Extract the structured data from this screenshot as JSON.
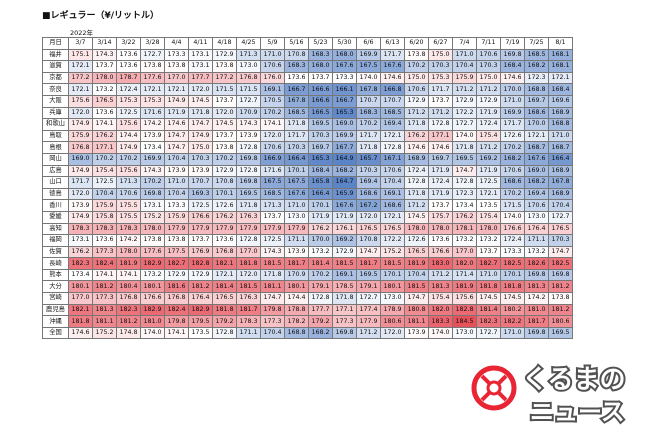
{
  "title": "■レギュラー（¥/リットル）",
  "year_label": "2022年",
  "header_label": "月日",
  "dates": [
    "3/7",
    "3/14",
    "3/22",
    "3/28",
    "4/4",
    "4/11",
    "4/18",
    "4/25",
    "5/9",
    "5/16",
    "5/23",
    "5/30",
    "6/6",
    "6/13",
    "6/20",
    "6/27",
    "7/4",
    "7/11",
    "7/19",
    "7/25",
    "8/1"
  ],
  "rows": [
    {
      "pref": "福井",
      "v": [
        "175.1",
        "174.3",
        "173.6",
        "172.7",
        "173.3",
        "173.1",
        "172.9",
        "171.3",
        "171.0",
        "170.8",
        "168.3",
        "168.0",
        "169.9",
        "171.7",
        "173.8",
        "175.0",
        "171.0",
        "170.6",
        "169.8",
        "168.5",
        "168.1"
      ]
    },
    {
      "pref": "滋賀",
      "v": [
        "172.1",
        "173.7",
        "173.6",
        "173.8",
        "173.8",
        "173.1",
        "173.8",
        "173.0",
        "170.6",
        "168.3",
        "168.0",
        "167.6",
        "167.5",
        "167.6",
        "170.2",
        "170.3",
        "170.4",
        "170.3",
        "168.4",
        "168.2",
        "168.1"
      ]
    },
    {
      "pref": "京都",
      "v": [
        "177.2",
        "178.0",
        "178.7",
        "177.6",
        "177.0",
        "177.7",
        "177.2",
        "176.8",
        "176.0",
        "173.6",
        "173.7",
        "173.3",
        "174.0",
        "174.6",
        "175.0",
        "175.3",
        "175.9",
        "175.0",
        "174.6",
        "172.3",
        "172.1"
      ]
    },
    {
      "pref": "奈良",
      "v": [
        "172.1",
        "173.2",
        "172.4",
        "172.1",
        "172.1",
        "172.0",
        "171.5",
        "171.5",
        "169.1",
        "166.7",
        "166.6",
        "166.1",
        "167.8",
        "166.8",
        "170.6",
        "171.7",
        "171.2",
        "171.2",
        "170.0",
        "168.8",
        "168.4"
      ]
    },
    {
      "pref": "大阪",
      "v": [
        "175.6",
        "176.5",
        "175.3",
        "175.3",
        "174.9",
        "174.5",
        "173.7",
        "172.7",
        "170.5",
        "167.8",
        "166.6",
        "166.7",
        "170.7",
        "170.7",
        "172.9",
        "173.7",
        "172.9",
        "172.9",
        "171.0",
        "169.7",
        "169.6"
      ]
    },
    {
      "pref": "兵庫",
      "v": [
        "172.0",
        "173.6",
        "172.5",
        "171.6",
        "171.9",
        "171.8",
        "172.0",
        "170.9",
        "170.2",
        "168.5",
        "166.5",
        "165.3",
        "168.3",
        "168.5",
        "171.2",
        "171.2",
        "172.2",
        "171.9",
        "169.9",
        "168.6",
        "168.9"
      ]
    },
    {
      "pref": "和歌山",
      "v": [
        "174.9",
        "174.1",
        "175.6",
        "174.2",
        "174.6",
        "174.7",
        "174.5",
        "174.3",
        "174.1",
        "171.8",
        "169.5",
        "169.0",
        "170.2",
        "169.4",
        "171.8",
        "172.8",
        "172.7",
        "172.4",
        "171.7",
        "170.0",
        "168.8"
      ]
    },
    {
      "pref": "鳥取",
      "v": [
        "175.9",
        "176.2",
        "174.4",
        "173.9",
        "174.7",
        "174.9",
        "173.7",
        "173.9",
        "172.0",
        "171.7",
        "170.3",
        "169.9",
        "171.7",
        "172.1",
        "176.2",
        "177.1",
        "174.0",
        "175.4",
        "172.6",
        "172.1",
        "171.0"
      ]
    },
    {
      "pref": "島根",
      "v": [
        "176.8",
        "177.1",
        "174.9",
        "173.4",
        "174.7",
        "175.0",
        "173.8",
        "172.8",
        "170.6",
        "170.3",
        "169.7",
        "167.7",
        "171.8",
        "172.8",
        "174.6",
        "174.6",
        "171.8",
        "171.2",
        "170.2",
        "168.7",
        "168.7"
      ]
    },
    {
      "pref": "岡山",
      "v": [
        "169.0",
        "170.2",
        "170.2",
        "169.9",
        "170.4",
        "170.3",
        "170.2",
        "169.8",
        "166.9",
        "166.4",
        "165.3",
        "164.9",
        "165.7",
        "167.1",
        "168.9",
        "169.7",
        "169.5",
        "169.2",
        "168.2",
        "167.6",
        "166.4"
      ]
    },
    {
      "pref": "広島",
      "v": [
        "174.9",
        "175.4",
        "175.6",
        "174.3",
        "173.9",
        "173.9",
        "172.9",
        "172.8",
        "171.6",
        "170.1",
        "168.4",
        "168.2",
        "170.3",
        "170.6",
        "172.4",
        "171.9",
        "174.7",
        "171.9",
        "170.6",
        "169.0",
        "168.9"
      ]
    },
    {
      "pref": "山口",
      "v": [
        "171.7",
        "172.5",
        "171.3",
        "170.2",
        "171.0",
        "170.7",
        "170.8",
        "169.8",
        "167.5",
        "167.5",
        "165.8",
        "164.7",
        "169.4",
        "170.4",
        "172.8",
        "172.4",
        "172.8",
        "172.5",
        "168.6",
        "168.2",
        "167.8"
      ]
    },
    {
      "pref": "徳島",
      "v": [
        "172.0",
        "170.4",
        "170.6",
        "169.8",
        "170.4",
        "169.3",
        "170.1",
        "169.5",
        "168.5",
        "167.6",
        "166.4",
        "165.9",
        "168.6",
        "169.1",
        "171.8",
        "171.9",
        "172.3",
        "172.1",
        "170.2",
        "169.4",
        "168.9"
      ]
    },
    {
      "pref": "香川",
      "v": [
        "173.9",
        "175.9",
        "175.5",
        "173.1",
        "173.3",
        "172.5",
        "172.6",
        "171.8",
        "171.3",
        "171.0",
        "170.1",
        "167.6",
        "167.2",
        "168.6",
        "171.2",
        "173.7",
        "173.4",
        "173.5",
        "171.5",
        "170.6",
        "170.4"
      ]
    },
    {
      "pref": "愛媛",
      "v": [
        "174.9",
        "175.8",
        "175.5",
        "175.2",
        "175.9",
        "176.6",
        "176.2",
        "176.3",
        "173.7",
        "173.0",
        "171.9",
        "171.9",
        "172.0",
        "172.1",
        "174.5",
        "175.7",
        "176.2",
        "175.4",
        "174.0",
        "173.0",
        "172.7"
      ]
    },
    {
      "pref": "高知",
      "v": [
        "178.3",
        "178.3",
        "178.3",
        "178.0",
        "177.9",
        "177.9",
        "177.9",
        "177.9",
        "177.9",
        "177.9",
        "176.2",
        "176.1",
        "176.5",
        "176.5",
        "178.0",
        "178.0",
        "178.1",
        "178.0",
        "176.6",
        "176.4",
        "176.5"
      ]
    },
    {
      "pref": "福岡",
      "v": [
        "173.1",
        "173.6",
        "174.2",
        "173.8",
        "173.8",
        "173.7",
        "173.6",
        "172.8",
        "172.5",
        "171.1",
        "170.0",
        "169.2",
        "170.8",
        "172.2",
        "172.6",
        "173.6",
        "173.2",
        "173.2",
        "172.4",
        "171.1",
        "170.3"
      ]
    },
    {
      "pref": "佐賀",
      "v": [
        "176.2",
        "177.3",
        "178.0",
        "177.6",
        "177.5",
        "176.9",
        "176.8",
        "177.0",
        "174.3",
        "173.9",
        "173.2",
        "172.9",
        "174.7",
        "175.2",
        "176.5",
        "176.6",
        "177.0",
        "173.7",
        "173.3",
        "173.2",
        "174.7"
      ]
    },
    {
      "pref": "長崎",
      "v": [
        "182.3",
        "182.4",
        "181.9",
        "182.9",
        "182.7",
        "182.8",
        "182.1",
        "181.8",
        "181.5",
        "181.7",
        "181.4",
        "181.5",
        "181.7",
        "181.5",
        "181.9",
        "183.0",
        "182.0",
        "182.7",
        "182.5",
        "182.6",
        "182.5"
      ]
    },
    {
      "pref": "熊本",
      "v": [
        "173.4",
        "174.1",
        "174.1",
        "173.2",
        "172.9",
        "172.9",
        "172.1",
        "172.0",
        "171.8",
        "170.9",
        "170.2",
        "169.1",
        "169.5",
        "170.1",
        "170.4",
        "171.2",
        "171.4",
        "171.0",
        "170.1",
        "169.8",
        "169.8"
      ]
    },
    {
      "pref": "大分",
      "v": [
        "180.1",
        "181.2",
        "180.4",
        "180.1",
        "181.6",
        "181.2",
        "181.4",
        "181.5",
        "181.1",
        "180.1",
        "179.1",
        "178.5",
        "179.1",
        "180.1",
        "181.5",
        "181.3",
        "181.9",
        "181.8",
        "181.8",
        "181.3",
        "181.2"
      ]
    },
    {
      "pref": "宮崎",
      "v": [
        "177.0",
        "177.3",
        "176.8",
        "176.6",
        "176.8",
        "176.4",
        "176.5",
        "176.3",
        "174.7",
        "174.4",
        "172.8",
        "171.8",
        "172.7",
        "173.0",
        "174.7",
        "175.4",
        "175.6",
        "174.5",
        "174.5",
        "174.2",
        "173.8"
      ]
    },
    {
      "pref": "鹿児島",
      "v": [
        "182.1",
        "181.3",
        "182.3",
        "182.9",
        "182.4",
        "182.9",
        "181.8",
        "181.7",
        "179.8",
        "178.8",
        "177.7",
        "177.1",
        "177.4",
        "178.9",
        "180.8",
        "182.0",
        "182.8",
        "181.4",
        "180.2",
        "181.0",
        "181.2"
      ]
    },
    {
      "pref": "沖縄",
      "v": [
        "181.8",
        "181.1",
        "181.2",
        "181.0",
        "179.8",
        "179.5",
        "179.2",
        "178.3",
        "177.3",
        "178.2",
        "179.2",
        "177.3",
        "177.9",
        "180.6",
        "181.1",
        "183.3",
        "184.5",
        "182.3",
        "182.2",
        "181.7",
        "180.6"
      ]
    },
    {
      "pref": "全国",
      "v": [
        "174.6",
        "175.2",
        "174.8",
        "174.0",
        "174.1",
        "173.5",
        "172.8",
        "171.1",
        "170.4",
        "168.8",
        "168.2",
        "169.8",
        "171.2",
        "172.0",
        "173.9",
        "174.0",
        "173.0",
        "172.7",
        "171.0",
        "169.8",
        "169.5"
      ]
    }
  ],
  "scale": {
    "min": 165.0,
    "mid": 173.5,
    "max": 184.5,
    "low_color": "#5a84c8",
    "mid_color": "#ffffff",
    "high_color": "#e8505a"
  },
  "logo": {
    "line1": "くるまの",
    "line2": "ニュース",
    "accent": "#e60012"
  }
}
